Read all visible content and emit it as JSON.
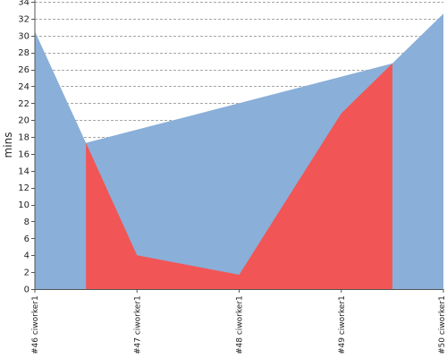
{
  "chart_data": {
    "type": "area",
    "title": "",
    "xlabel": "",
    "ylabel": "mins",
    "categories": [
      "#46 ciworker1",
      "#47 ciworker1",
      "#48 ciworker1",
      "#49 ciworker1",
      "#50 ciworker1"
    ],
    "ylim": [
      0,
      34
    ],
    "y_ticks": [
      0,
      2,
      4,
      6,
      8,
      10,
      12,
      14,
      16,
      18,
      20,
      22,
      24,
      26,
      28,
      30,
      32,
      34
    ],
    "grid": true,
    "series": [
      {
        "color": "#8aafd8",
        "points": [
          {
            "x": 0,
            "y": 30.5
          },
          {
            "x": 0.5,
            "y": 17.3
          },
          {
            "x": 3.5,
            "y": 26.7
          },
          {
            "x": 4,
            "y": 32.6
          }
        ]
      },
      {
        "color": "#f25555",
        "points": [
          {
            "x": 0.5,
            "y": 17.3
          },
          {
            "x": 1,
            "y": 4.0
          },
          {
            "x": 2,
            "y": 1.7
          },
          {
            "x": 3,
            "y": 20.8
          },
          {
            "x": 3.5,
            "y": 26.7
          }
        ]
      }
    ],
    "colors": {
      "passing": "#8aafd8",
      "failing": "#f25555",
      "grid": "#888888",
      "axis": "#555555"
    }
  }
}
